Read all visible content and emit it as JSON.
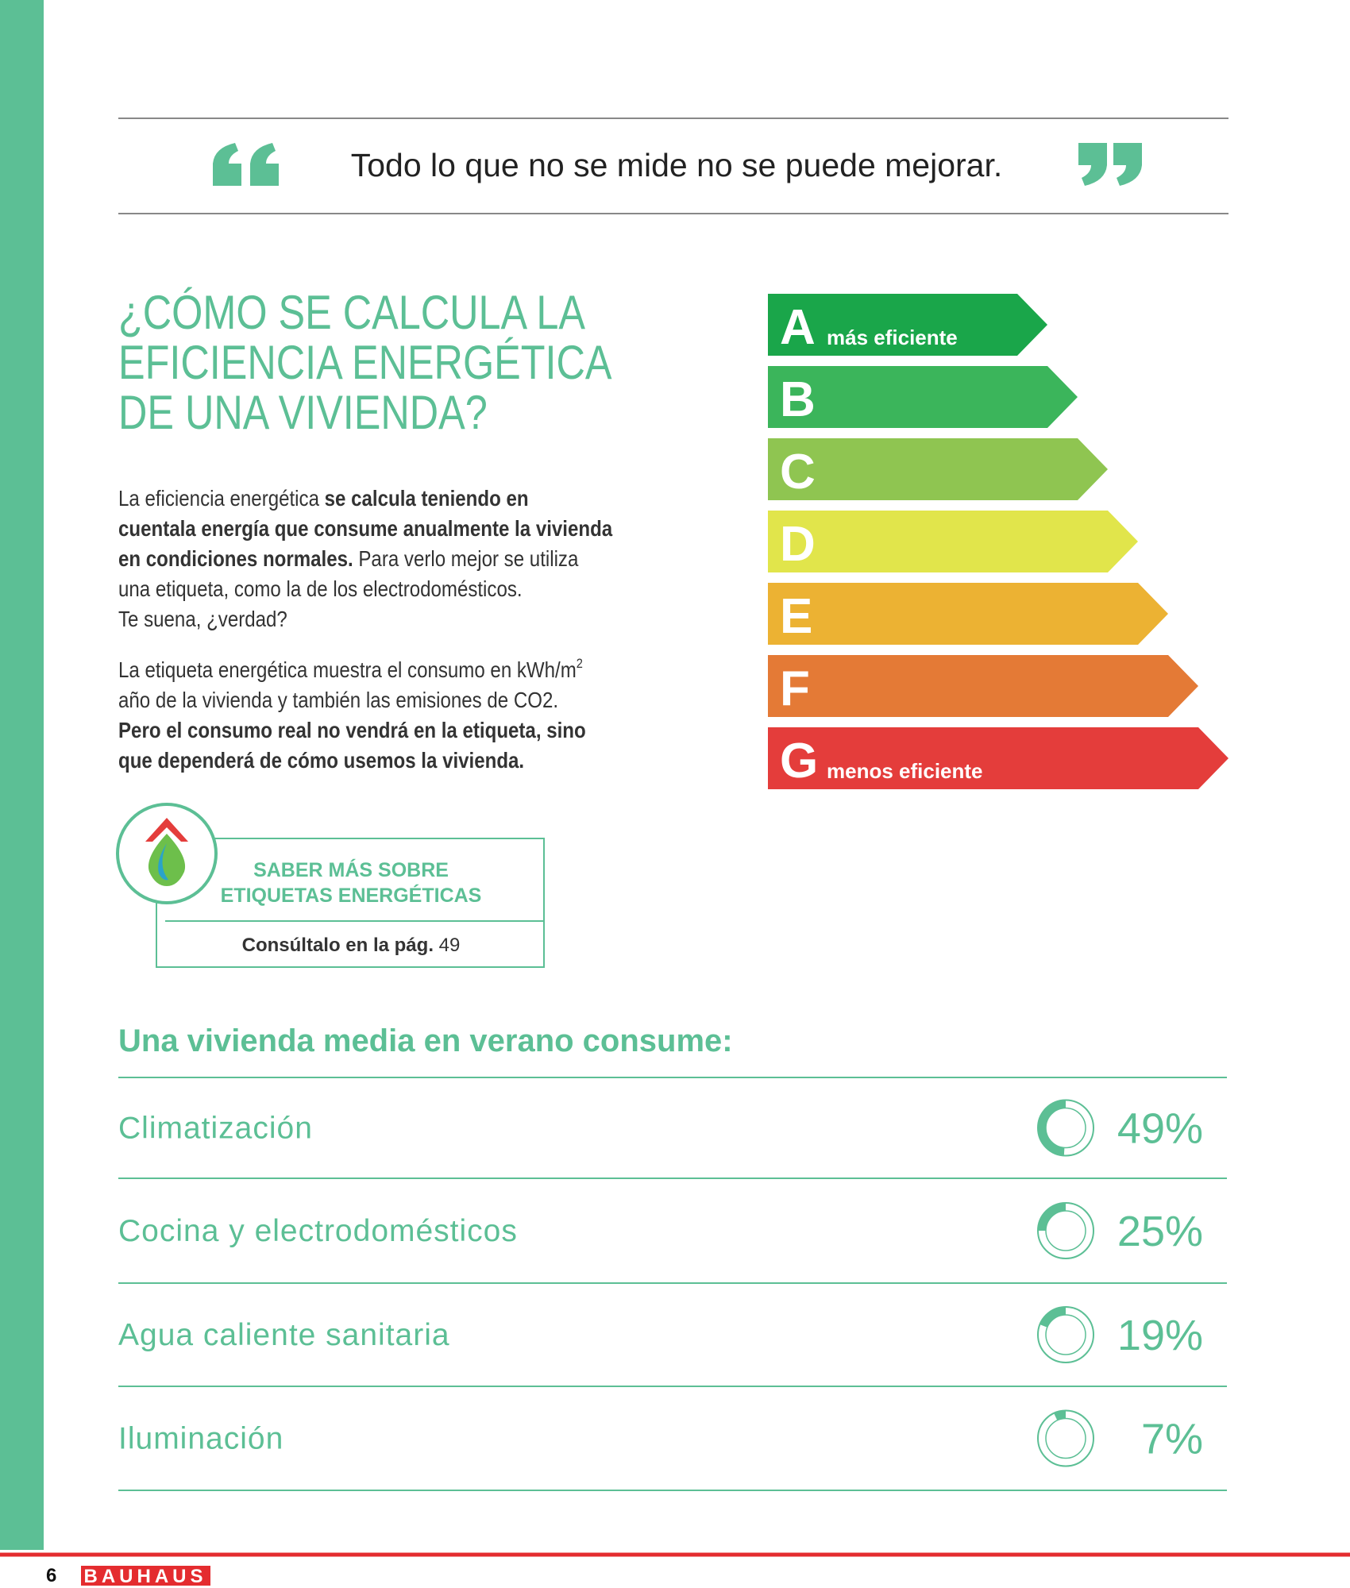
{
  "quote": "Todo lo que no se mide no se puede mejorar.",
  "heading": [
    "¿CÓMO SE CALCULA LA",
    "EFICIENCIA ENERGÉTICA",
    "DE UNA VIVIENDA?"
  ],
  "paragraphs": [
    [
      [
        {
          "text": "La eficiencia energética "
        },
        {
          "text": "se calcula teniendo en",
          "bold": true
        }
      ],
      [
        {
          "text": "cuentala energía que consume anualmente la vivienda",
          "bold": true
        }
      ],
      [
        {
          "text": "en condiciones normales.",
          "bold": true
        },
        {
          "text": " Para verlo mejor se utiliza"
        }
      ],
      [
        {
          "text": "una etiqueta, como la de los electrodomésticos."
        }
      ],
      [
        {
          "text": "Te suena, ¿verdad?"
        }
      ]
    ],
    [
      [
        {
          "text": "La etiqueta energética muestra el consumo en kWh/m"
        },
        {
          "text": "2",
          "sup": true
        }
      ],
      [
        {
          "text": "año de la vivienda y también las emisiones de CO2."
        }
      ],
      [
        {
          "text": "Pero el consumo real no vendrá en la etiqueta, sino",
          "bold": true
        }
      ],
      [
        {
          "text": "que dependerá de cómo usemos la vivienda.",
          "bold": true
        }
      ]
    ]
  ],
  "energy_label": [
    {
      "letter": "A",
      "color": "#1aa64a",
      "note": "más eficiente"
    },
    {
      "letter": "B",
      "color": "#3bb55b"
    },
    {
      "letter": "C",
      "color": "#8fc551"
    },
    {
      "letter": "D",
      "color": "#e1e54b"
    },
    {
      "letter": "E",
      "color": "#ecb233"
    },
    {
      "letter": "F",
      "color": "#e47a36"
    },
    {
      "letter": "G",
      "color": "#e43d3b",
      "note": "menos eficiente"
    }
  ],
  "callout": {
    "title": [
      "SABER MÁS SOBRE",
      "ETIQUETAS ENERGÉTICAS"
    ],
    "reference": "Consúltalo en la pág.",
    "page": "49"
  },
  "consumption": {
    "title": "Una vivienda media en verano consume:",
    "items": [
      {
        "label": "Climatización",
        "value": 49,
        "value_label": "49%"
      },
      {
        "label": "Cocina y electrodomésticos",
        "value": 25,
        "value_label": "25%"
      },
      {
        "label": "Agua caliente sanitaria",
        "value": 19,
        "value_label": "19%"
      },
      {
        "label": "Iluminación",
        "value": 7,
        "value_label": "7%"
      }
    ]
  },
  "footer": {
    "page_number": "6",
    "brand": "BAUHAUS"
  }
}
